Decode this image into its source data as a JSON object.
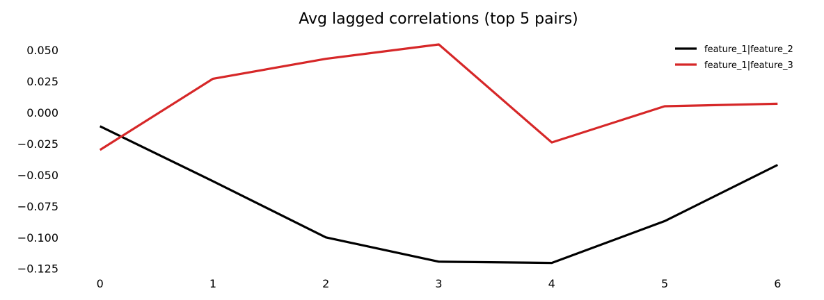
{
  "chart_data": {
    "type": "line",
    "title": "Avg lagged correlations (top 5 pairs)",
    "xlabel": "",
    "ylabel": "",
    "x": [
      0,
      1,
      2,
      3,
      4,
      5,
      6
    ],
    "xticks": [
      "0",
      "1",
      "2",
      "3",
      "4",
      "5",
      "6"
    ],
    "yticks": [
      0.05,
      0.025,
      0.0,
      -0.025,
      -0.05,
      -0.075,
      -0.1,
      -0.125
    ],
    "ytick_labels": [
      "0.050",
      "0.025",
      "0.000",
      "−0.025",
      "−0.050",
      "−0.075",
      "−0.100",
      "−0.125"
    ],
    "xlim": [
      -0.3,
      6.3
    ],
    "ylim": [
      -0.1285,
      0.0595
    ],
    "grid": false,
    "legend_position": "top-right",
    "series": [
      {
        "name": "feature_1|feature_2",
        "color": "#000000",
        "values": [
          -0.011,
          -0.055,
          -0.1,
          -0.1195,
          -0.1205,
          -0.087,
          -0.042
        ]
      },
      {
        "name": "feature_1|feature_3",
        "color": "#d62728",
        "values": [
          -0.03,
          0.027,
          0.043,
          0.0545,
          -0.024,
          0.005,
          0.007
        ]
      }
    ]
  }
}
